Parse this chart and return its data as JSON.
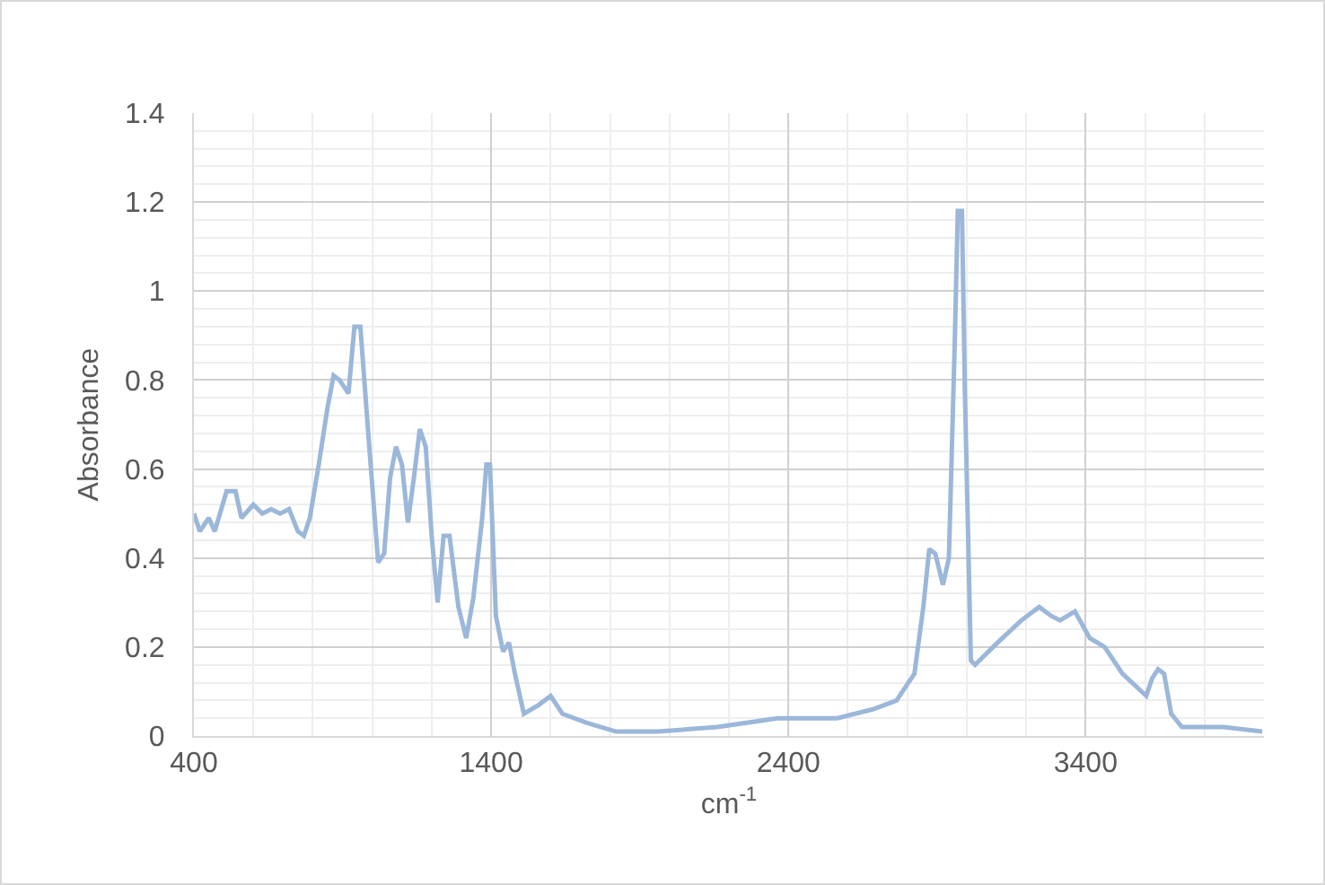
{
  "chart_data": {
    "type": "line",
    "xlabel": "cm$^{-1}$",
    "ylabel": "Absorbance",
    "xlim": [
      400,
      4000
    ],
    "xticks": [
      400,
      1400,
      2400,
      3400
    ],
    "ylim": [
      0,
      1.4
    ],
    "yticks": [
      {
        "value": 0,
        "label": "0"
      },
      0.2,
      0.4,
      0.6,
      0.8,
      {
        "value": 1,
        "label": "1"
      },
      1.2,
      1.4
    ],
    "grid": true,
    "marker": "none",
    "line_style": "solid",
    "series": [
      {
        "color": "#9bb7d9",
        "x": [
          400,
          420,
          450,
          470,
          510,
          540,
          560,
          600,
          630,
          660,
          690,
          720,
          750,
          770,
          790,
          820,
          850,
          870,
          890,
          920,
          940,
          960,
          990,
          1020,
          1040,
          1060,
          1080,
          1100,
          1120,
          1140,
          1160,
          1180,
          1200,
          1220,
          1240,
          1260,
          1290,
          1316,
          1340,
          1370,
          1384,
          1396,
          1416,
          1440,
          1460,
          1480,
          1510,
          1560,
          1600,
          1640,
          1720,
          1820,
          1960,
          2160,
          2364,
          2564,
          2684,
          2764,
          2824,
          2854,
          2874,
          2894,
          2920,
          2940,
          2960,
          2970,
          2984,
          2994,
          3014,
          3028,
          3104,
          3184,
          3244,
          3284,
          3314,
          3364,
          3414,
          3464,
          3524,
          3604,
          3624,
          3644,
          3664,
          3688,
          3724,
          3864,
          3994
        ],
        "values": [
          0.5,
          0.46,
          0.49,
          0.46,
          0.55,
          0.55,
          0.49,
          0.52,
          0.5,
          0.51,
          0.5,
          0.51,
          0.46,
          0.45,
          0.49,
          0.61,
          0.74,
          0.81,
          0.8,
          0.77,
          0.92,
          0.92,
          0.65,
          0.39,
          0.41,
          0.58,
          0.65,
          0.61,
          0.48,
          0.58,
          0.69,
          0.65,
          0.45,
          0.3,
          0.45,
          0.45,
          0.29,
          0.22,
          0.31,
          0.49,
          0.61,
          0.61,
          0.27,
          0.19,
          0.21,
          0.14,
          0.05,
          0.07,
          0.09,
          0.05,
          0.03,
          0.01,
          0.01,
          0.02,
          0.04,
          0.04,
          0.06,
          0.08,
          0.14,
          0.29,
          0.42,
          0.41,
          0.34,
          0.4,
          0.89,
          1.18,
          1.18,
          0.77,
          0.17,
          0.16,
          0.21,
          0.26,
          0.29,
          0.27,
          0.26,
          0.28,
          0.22,
          0.2,
          0.14,
          0.09,
          0.13,
          0.15,
          0.14,
          0.05,
          0.02,
          0.02,
          0.01
        ]
      }
    ]
  }
}
